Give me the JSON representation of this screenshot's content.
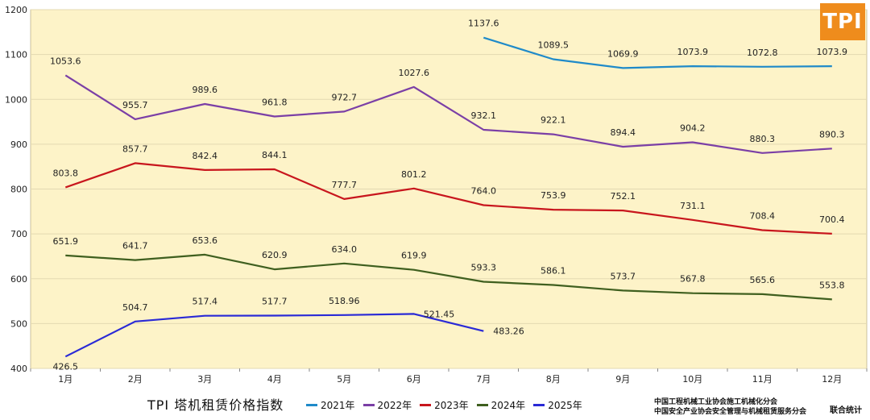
{
  "header": {
    "logo_text": "TPI"
  },
  "footer": {
    "title": "TPI 塔机租赁价格指数",
    "org_line1": "中国工程机械工业协会施工机械化分会",
    "org_line2": "中国安全产业协会安全管理与机械租赁服务分会",
    "joint": "联合统计"
  },
  "colors": {
    "plot_bg": "#fdf3c8",
    "grid": "#e3d9b1"
  },
  "chart_data": {
    "type": "line",
    "title": "TPI 塔机租赁价格指数",
    "categories": [
      "1月",
      "2月",
      "3月",
      "4月",
      "5月",
      "6月",
      "7月",
      "8月",
      "9月",
      "10月",
      "11月",
      "12月"
    ],
    "ylim": [
      400,
      1200
    ],
    "yticks": [
      400,
      500,
      600,
      700,
      800,
      900,
      1000,
      1100,
      1200
    ],
    "grid": true,
    "legend_position": "bottom",
    "series": [
      {
        "name": "2021年",
        "color": "#1f8ac9",
        "values": [
          null,
          null,
          null,
          null,
          null,
          null,
          1137.6,
          1089.5,
          1069.9,
          1073.9,
          1072.8,
          1073.9
        ],
        "labels": [
          null,
          null,
          null,
          null,
          null,
          null,
          "1137.6",
          "1089.5",
          "1069.9",
          "1073.9",
          "1072.8",
          "1073.9"
        ]
      },
      {
        "name": "2022年",
        "color": "#7b3fa6",
        "values": [
          1053.6,
          955.7,
          989.6,
          961.8,
          972.7,
          1027.6,
          932.1,
          922.1,
          894.4,
          904.2,
          880.3,
          890.3
        ],
        "labels": [
          "1053.6",
          "955.7",
          "989.6",
          "961.8",
          "972.7",
          "1027.6",
          "932.1",
          "922.1",
          "894.4",
          "904.2",
          "880.3",
          "890.3"
        ]
      },
      {
        "name": "2023年",
        "color": "#c8161d",
        "values": [
          803.8,
          857.7,
          842.4,
          844.1,
          777.7,
          801.2,
          764.0,
          753.9,
          752.1,
          731.1,
          708.4,
          700.4
        ],
        "labels": [
          "803.8",
          "857.7",
          "842.4",
          "844.1",
          "777.7",
          "801.2",
          "764.0",
          "753.9",
          "752.1",
          "731.1",
          "708.4",
          "700.4"
        ]
      },
      {
        "name": "2024年",
        "color": "#3f5f1f",
        "values": [
          651.9,
          641.7,
          653.6,
          620.9,
          634.0,
          619.9,
          593.3,
          586.1,
          573.7,
          567.8,
          565.6,
          553.8
        ],
        "labels": [
          "651.9",
          "641.7",
          "653.6",
          "620.9",
          "634.0",
          "619.9",
          "593.3",
          "586.1",
          "573.7",
          "567.8",
          "565.6",
          "553.8"
        ]
      },
      {
        "name": "2025年",
        "color": "#2a2ad6",
        "values": [
          426.5,
          504.7,
          517.4,
          517.7,
          518.96,
          521.45,
          483.26,
          null,
          null,
          null,
          null,
          null
        ],
        "labels": [
          "426.5",
          "504.7",
          "517.4",
          "517.7",
          "518.96",
          "521.45",
          "483.26",
          null,
          null,
          null,
          null,
          null
        ]
      }
    ]
  }
}
